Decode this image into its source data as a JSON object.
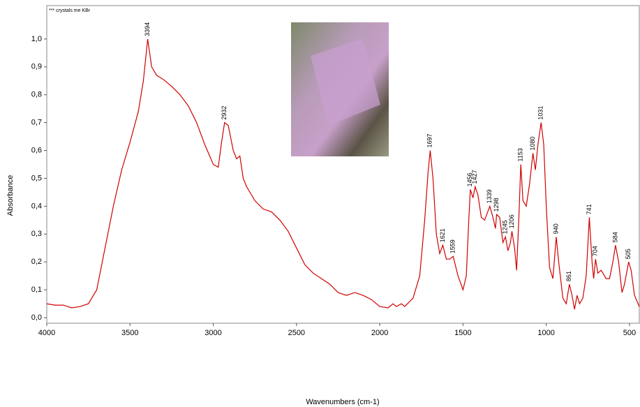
{
  "chart_data": {
    "type": "line",
    "note": "*** crystals me KBr",
    "xlabel": "Wavenumbers (cm-1)",
    "ylabel": "Absorbance",
    "xlim": [
      4000,
      441
    ],
    "ylim": [
      -0.02,
      1.12
    ],
    "xticks": [
      4000,
      3500,
      3000,
      2500,
      2000,
      1500,
      1000,
      500
    ],
    "yticks": [
      {
        "value": 0,
        "label": "0,0"
      },
      {
        "value": 0.1,
        "label": "0,1"
      },
      {
        "value": 0.2,
        "label": "0,2"
      },
      {
        "value": 0.3,
        "label": "0,3"
      },
      {
        "value": 0.4,
        "label": "0,4"
      },
      {
        "value": 0.5,
        "label": "0,5"
      },
      {
        "value": 0.6,
        "label": "0,6"
      },
      {
        "value": 0.7,
        "label": "0,7"
      },
      {
        "value": 0.8,
        "label": "0,8"
      },
      {
        "value": 0.9,
        "label": "0,9"
      },
      {
        "value": 1.0,
        "label": "1,0"
      }
    ],
    "x": [
      4000,
      3950,
      3900,
      3850,
      3800,
      3750,
      3700,
      3650,
      3600,
      3550,
      3500,
      3450,
      3420,
      3394,
      3370,
      3340,
      3300,
      3250,
      3200,
      3150,
      3100,
      3050,
      3000,
      2970,
      2950,
      2932,
      2910,
      2880,
      2860,
      2840,
      2820,
      2800,
      2750,
      2700,
      2650,
      2600,
      2550,
      2500,
      2450,
      2400,
      2350,
      2300,
      2250,
      2200,
      2150,
      2100,
      2050,
      2000,
      1950,
      1920,
      1900,
      1870,
      1850,
      1800,
      1760,
      1730,
      1710,
      1697,
      1680,
      1660,
      1640,
      1621,
      1600,
      1580,
      1559,
      1530,
      1500,
      1480,
      1465,
      1456,
      1440,
      1427,
      1410,
      1390,
      1370,
      1339,
      1320,
      1305,
      1298,
      1280,
      1260,
      1245,
      1230,
      1215,
      1206,
      1190,
      1178,
      1165,
      1153,
      1140,
      1120,
      1100,
      1080,
      1065,
      1050,
      1031,
      1015,
      1000,
      980,
      960,
      940,
      925,
      900,
      880,
      861,
      845,
      830,
      815,
      800,
      780,
      760,
      741,
      725,
      715,
      704,
      690,
      670,
      640,
      620,
      600,
      584,
      565,
      545,
      530,
      505,
      490,
      470,
      441
    ],
    "series": [
      {
        "name": "crystals me KBr",
        "color": "#d00000",
        "values": [
          0.05,
          0.045,
          0.045,
          0.035,
          0.04,
          0.05,
          0.1,
          0.25,
          0.4,
          0.53,
          0.63,
          0.74,
          0.85,
          1.0,
          0.9,
          0.87,
          0.855,
          0.83,
          0.8,
          0.76,
          0.7,
          0.62,
          0.55,
          0.54,
          0.63,
          0.7,
          0.69,
          0.6,
          0.57,
          0.58,
          0.5,
          0.47,
          0.42,
          0.39,
          0.38,
          0.35,
          0.31,
          0.25,
          0.19,
          0.16,
          0.14,
          0.12,
          0.09,
          0.08,
          0.09,
          0.08,
          0.065,
          0.04,
          0.035,
          0.05,
          0.04,
          0.05,
          0.04,
          0.07,
          0.15,
          0.35,
          0.52,
          0.6,
          0.5,
          0.3,
          0.23,
          0.26,
          0.21,
          0.21,
          0.22,
          0.15,
          0.1,
          0.15,
          0.35,
          0.46,
          0.43,
          0.47,
          0.44,
          0.36,
          0.35,
          0.4,
          0.36,
          0.32,
          0.37,
          0.36,
          0.27,
          0.29,
          0.24,
          0.27,
          0.31,
          0.25,
          0.17,
          0.35,
          0.55,
          0.42,
          0.4,
          0.48,
          0.59,
          0.53,
          0.62,
          0.7,
          0.62,
          0.4,
          0.18,
          0.14,
          0.29,
          0.2,
          0.07,
          0.05,
          0.12,
          0.08,
          0.03,
          0.08,
          0.05,
          0.07,
          0.15,
          0.36,
          0.2,
          0.14,
          0.21,
          0.16,
          0.17,
          0.14,
          0.14,
          0.2,
          0.26,
          0.2,
          0.09,
          0.12,
          0.2,
          0.17,
          0.08,
          0.04
        ]
      }
    ],
    "peaks": [
      3394,
      2932,
      1697,
      1621,
      1559,
      1456,
      1427,
      1339,
      1298,
      1245,
      1206,
      1153,
      1080,
      1031,
      940,
      861,
      741,
      704,
      584,
      505
    ]
  }
}
